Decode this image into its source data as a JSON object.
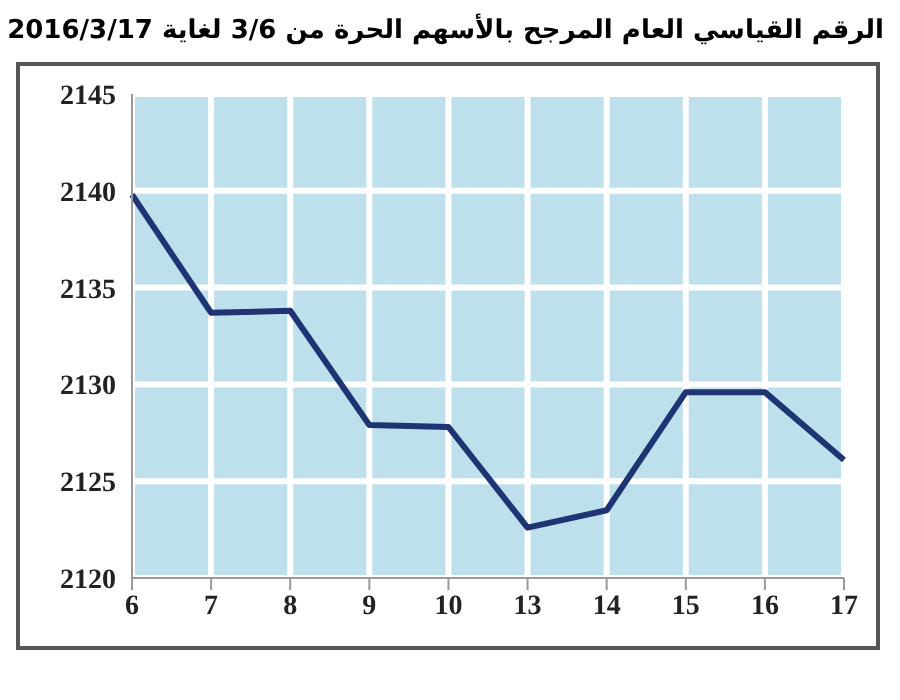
{
  "chart_data": {
    "type": "line",
    "title": "الرقم القياسي العام المرجح بالأسهم الحرة من 3/6 لغاية 2016/3/17",
    "categories": [
      "6",
      "7",
      "8",
      "9",
      "10",
      "13",
      "14",
      "15",
      "16",
      "17"
    ],
    "series": [
      {
        "color": "#1f3473",
        "values": [
          2139.8,
          2133.7,
          2133.8,
          2127.9,
          2127.8,
          2122.6,
          2123.5,
          2129.6,
          2129.6,
          2126.1
        ]
      }
    ],
    "ylim": [
      2120,
      2145
    ],
    "yticks": [
      2120,
      2125,
      2130,
      2135,
      2140,
      2145
    ],
    "grid": true,
    "marker": "none",
    "line_style": "solid"
  }
}
